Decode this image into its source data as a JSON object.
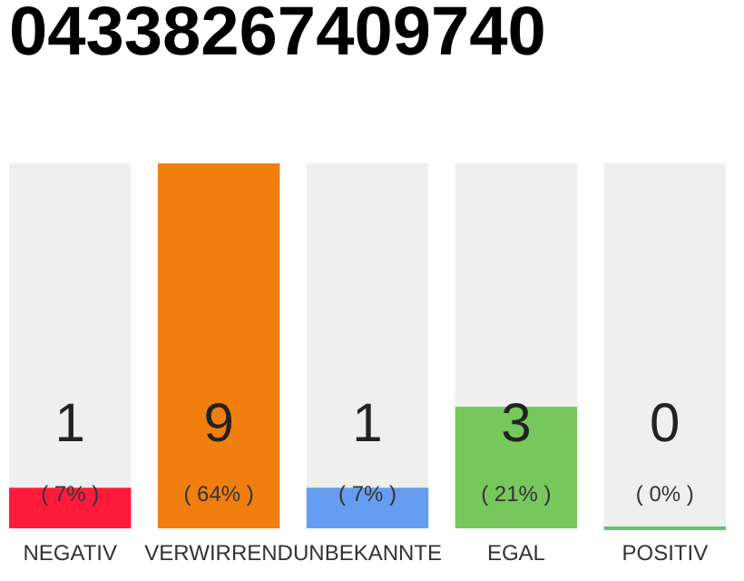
{
  "chart_data": {
    "type": "bar",
    "title": "04338267409740",
    "categories": [
      "NEGATIV",
      "VERWIRREND",
      "UNBEKANNTE",
      "EGAL",
      "POSITIV"
    ],
    "values": [
      1,
      9,
      1,
      3,
      0
    ],
    "colors": [
      "#ff1a3c",
      "#f07f0e",
      "#669df0",
      "#77c85c",
      "#22aa44"
    ],
    "ylim": [
      0,
      9
    ],
    "tick_labels": "x",
    "data_labels": true,
    "grid": false,
    "annotations": [
      "( 7% )",
      "( 64% )",
      "( 7% )",
      "( 21% )",
      "( 0% )"
    ]
  }
}
